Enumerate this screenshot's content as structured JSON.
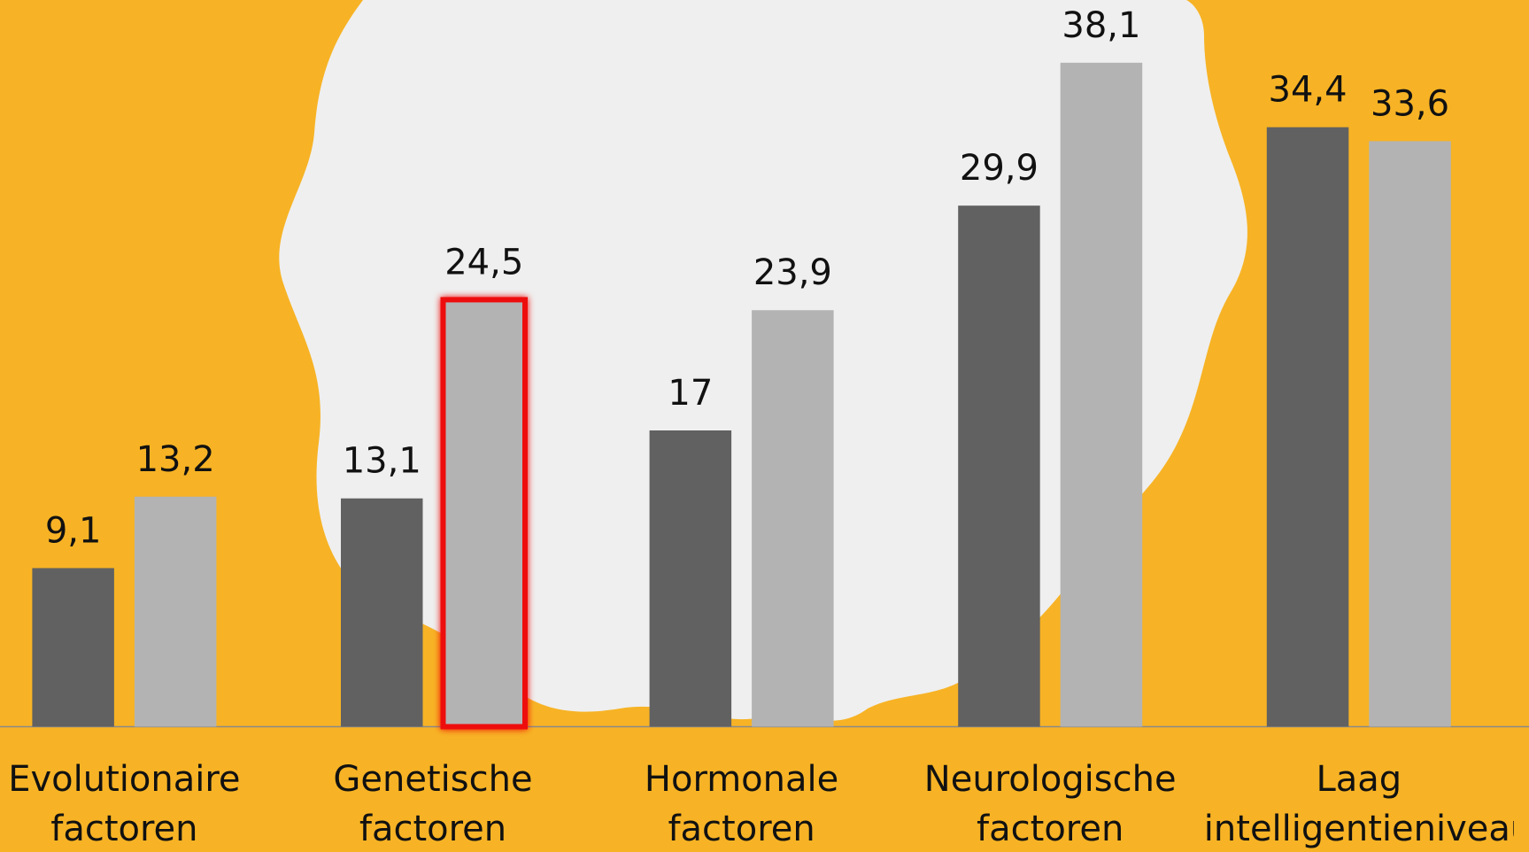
{
  "chart_data": {
    "type": "bar",
    "categories": [
      "Evolutionaire factoren",
      "Genetische factoren",
      "Hormonale factoren",
      "Neurologische factoren",
      "Laag intelligentieniveau"
    ],
    "series": [
      {
        "color": "#616161",
        "values": [
          9.1,
          13.1,
          17,
          29.9,
          34.4
        ],
        "value_labels": [
          "9,1",
          "13,1",
          "17",
          "29,9",
          "34,4"
        ]
      },
      {
        "color": "#b3b3b3",
        "values": [
          13.2,
          24.5,
          23.9,
          38.1,
          33.6
        ],
        "value_labels": [
          "13,2",
          "24,5",
          "23,9",
          "38,1",
          "33,6"
        ]
      }
    ],
    "ylim": [
      0,
      41.7
    ],
    "highlight": {
      "series": 1,
      "index": 1,
      "color": "#ee1111"
    }
  }
}
